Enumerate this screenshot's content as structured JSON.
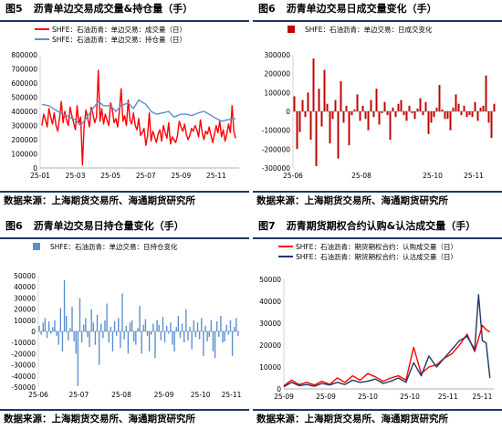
{
  "charts": [
    {
      "fig_num": "图5",
      "title": "沥青单边交易成交量&持仓量（手）",
      "source": "数据来源：上海期货交易所、海通期货研究所",
      "chart_data": {
        "type": "line",
        "legend": [
          {
            "name": "SHFE：石油沥青：单边交易：成交量（日）",
            "color": "#ff0000"
          },
          {
            "name": "SHFE：石油沥青：单边交易：持仓量（日）",
            "color": "#5b8fcf"
          }
        ],
        "legend_position": "top-left",
        "ylim": [
          0,
          800000
        ],
        "yticks": [
          0,
          100000,
          200000,
          300000,
          400000,
          500000,
          600000,
          700000,
          800000
        ],
        "xticks": [
          "25-01",
          "25-03",
          "25-05",
          "25-07",
          "25-09",
          "25-11"
        ],
        "xlim": [
          0,
          11.3
        ],
        "series": [
          {
            "name": "SHFE：石油沥青：单边交易：成交量（日）",
            "color": "#ff0000",
            "x": [
              0.1,
              0.2,
              0.3,
              0.4,
              0.5,
              0.6,
              0.7,
              0.8,
              0.9,
              1.0,
              1.1,
              1.2,
              1.3,
              1.4,
              1.5,
              1.6,
              1.7,
              1.8,
              1.9,
              2.0,
              2.1,
              2.2,
              2.3,
              2.4,
              2.5,
              2.6,
              2.7,
              2.8,
              2.9,
              3.0,
              3.1,
              3.2,
              3.3,
              3.4,
              3.5,
              3.6,
              3.7,
              3.8,
              3.9,
              4.0,
              4.1,
              4.2,
              4.3,
              4.4,
              4.5,
              4.6,
              4.7,
              4.8,
              4.9,
              5.0,
              5.1,
              5.2,
              5.3,
              5.4,
              5.5,
              5.6,
              5.7,
              5.8,
              5.9,
              6.0,
              6.1,
              6.2,
              6.3,
              6.4,
              6.5,
              6.6,
              6.7,
              6.8,
              6.9,
              7.0,
              7.1,
              7.2,
              7.3,
              7.4,
              7.5,
              7.6,
              7.7,
              7.8,
              7.9,
              8.0,
              8.1,
              8.2,
              8.3,
              8.4,
              8.5,
              8.6,
              8.7,
              8.8,
              8.9,
              9.0,
              9.1,
              9.2,
              9.3,
              9.4,
              9.5,
              9.6,
              9.7,
              9.8,
              9.9,
              10.0,
              10.1,
              10.2,
              10.3,
              10.4,
              10.5,
              10.6,
              10.7,
              10.8,
              10.9,
              11.0,
              11.1
            ],
            "y": [
              300000,
              380000,
              340000,
              290000,
              420000,
              360000,
              310000,
              390000,
              300000,
              260000,
              350000,
              470000,
              320000,
              400000,
              340000,
              300000,
              430000,
              370000,
              320000,
              270000,
              440000,
              310000,
              360000,
              20000,
              300000,
              410000,
              350000,
              290000,
              430000,
              380000,
              320000,
              360000,
              690000,
              330000,
              420000,
              310000,
              380000,
              340000,
              300000,
              460000,
              410000,
              320000,
              350000,
              290000,
              400000,
              560000,
              330000,
              370000,
              300000,
              480000,
              340000,
              310000,
              390000,
              300000,
              270000,
              350000,
              230000,
              250000,
              280000,
              160000,
              230000,
              390000,
              190000,
              260000,
              220000,
              180000,
              240000,
              270000,
              190000,
              300000,
              250000,
              210000,
              320000,
              170000,
              220000,
              200000,
              180000,
              230000,
              330000,
              290000,
              260000,
              310000,
              240000,
              200000,
              230000,
              280000,
              260000,
              300000,
              270000,
              220000,
              340000,
              250000,
              200000,
              260000,
              240000,
              290000,
              230000,
              180000,
              240000,
              300000,
              250000,
              330000,
              220000,
              270000,
              190000,
              240000,
              310000,
              250000,
              440000,
              260000,
              210000
            ]
          },
          {
            "name": "SHFE：石油沥青：单边交易：持仓量（日）",
            "color": "#5b8fcf",
            "x": [
              0.1,
              0.5,
              1.0,
              1.5,
              2.0,
              2.3,
              2.6,
              3.0,
              3.3,
              3.6,
              4.0,
              4.3,
              4.6,
              5.0,
              5.3,
              5.6,
              6.0,
              6.3,
              6.6,
              7.0,
              7.3,
              7.6,
              8.0,
              8.3,
              8.6,
              9.0,
              9.3,
              9.6,
              10.0,
              10.3,
              10.6,
              11.1
            ],
            "y": [
              450000,
              440000,
              400000,
              370000,
              340000,
              300000,
              350000,
              420000,
              470000,
              440000,
              440000,
              400000,
              440000,
              460000,
              420000,
              480000,
              450000,
              400000,
              380000,
              390000,
              400000,
              360000,
              380000,
              380000,
              370000,
              390000,
              400000,
              380000,
              350000,
              330000,
              340000,
              350000
            ]
          }
        ]
      }
    },
    {
      "fig_num": "图6",
      "title": "沥青单边交易日成交量变化（手）",
      "source": "数据来源：上海期货交易所、海通期货研究所",
      "chart_data": {
        "type": "bar",
        "legend": [
          {
            "name": "SHFE：石油沥青：单边交易：日成交变化",
            "color": "#c00000"
          }
        ],
        "legend_position": "top-left",
        "ylim": [
          -300000,
          300000
        ],
        "yticks": [
          -300000,
          -200000,
          -100000,
          0,
          100000,
          200000,
          300000
        ],
        "xticks": [
          "25-06",
          "25-08",
          "25-10",
          "25-11"
        ],
        "xlim": [
          0,
          74
        ],
        "xtick_positions": [
          0,
          25,
          51,
          66
        ],
        "series": [
          {
            "name": "SHFE：石油沥青：单边交易：日成交变化",
            "color": "#c00000",
            "values": [
              80000,
              -200000,
              -110000,
              60000,
              -30000,
              100000,
              -150000,
              280000,
              -290000,
              120000,
              -80000,
              220000,
              40000,
              -170000,
              -40000,
              60000,
              -250000,
              160000,
              -60000,
              30000,
              -180000,
              -20000,
              10000,
              90000,
              -50000,
              30000,
              -40000,
              -100000,
              60000,
              -30000,
              120000,
              -70000,
              -10000,
              50000,
              -20000,
              -150000,
              20000,
              -30000,
              40000,
              60000,
              -20000,
              -50000,
              30000,
              -10000,
              -40000,
              15000,
              70000,
              -20000,
              50000,
              -120000,
              -60000,
              -30000,
              20000,
              140000,
              10000,
              -40000,
              -40000,
              -100000,
              20000,
              90000,
              40000,
              -20000,
              30000,
              -30000,
              -20000,
              -30000,
              50000,
              -50000,
              20000,
              30000,
              190000,
              -60000,
              -140000,
              40000
            ]
          }
        ]
      }
    },
    {
      "fig_num": "图6",
      "title": "沥青单边交易日持仓量变化（手）",
      "source": "数据来源：上海期货交易所、海通期货研究所",
      "chart_data": {
        "type": "bar",
        "legend": [
          {
            "name": "SHFE：石油沥青：单边交易：日持仓变化",
            "color": "#5b8fcf"
          }
        ],
        "legend_position": "top-left",
        "ylim": [
          -50000,
          50000
        ],
        "yticks": [
          -50000,
          -40000,
          -30000,
          -20000,
          -10000,
          0,
          10000,
          20000,
          30000,
          40000,
          50000
        ],
        "xticks": [
          "25-06",
          "25-07",
          "25-08",
          "25-09",
          "25-10",
          "25-11"
        ],
        "xlim": [
          0,
          104
        ],
        "xtick_positions": [
          0,
          21,
          43,
          65,
          84,
          100
        ],
        "series": [
          {
            "name": "SHFE：石油沥青：单边交易：日持仓变化",
            "color": "#5b8fcf",
            "values": [
              5000,
              -3000,
              8000,
              12000,
              -6000,
              9000,
              -2000,
              4000,
              10000,
              -4000,
              -12000,
              21000,
              -18000,
              46000,
              14000,
              -8000,
              3000,
              22000,
              -9000,
              -20000,
              -49000,
              30000,
              -10000,
              6000,
              12000,
              -5000,
              -14000,
              20000,
              8000,
              -12000,
              15000,
              -30000,
              7000,
              -6000,
              10000,
              25000,
              -10000,
              4000,
              -18000,
              9000,
              -4000,
              12000,
              -15000,
              34000,
              -7000,
              5000,
              -20000,
              8000,
              10000,
              -9000,
              -12000,
              3000,
              23000,
              -20000,
              6000,
              11000,
              -4000,
              -18000,
              -3000,
              7000,
              -24000,
              10000,
              6000,
              -8000,
              13000,
              -10000,
              5000,
              -2000,
              8000,
              -12000,
              -18000,
              4000,
              14000,
              -6000,
              7000,
              -10000,
              20000,
              -8000,
              4000,
              -16000,
              10000,
              -5000,
              8000,
              -7000,
              12000,
              -22000,
              5000,
              -9000,
              -5000,
              10000,
              -18000,
              -24000,
              9000,
              -5000,
              14000,
              -10000,
              -9000,
              6000,
              -3000,
              10000,
              -22000,
              4000,
              12000,
              -4000
            ]
          }
        ]
      }
    },
    {
      "fig_num": "图7",
      "title": "沥青期货期权合约认购&认沽成交量（手）",
      "source": "数据来源：上海期货交易所、海通期货研究所",
      "chart_data": {
        "type": "line",
        "legend": [
          {
            "name": "SHFE：石油沥青：期货期权合约：认购成交量（日）",
            "color": "#ff0000"
          },
          {
            "name": "SHFE：石油沥青：期货期权合约：认沽成交量（日）",
            "color": "#1f3864"
          }
        ],
        "legend_position": "top-left",
        "ylim": [
          0,
          50000
        ],
        "yticks": [
          0,
          10000,
          20000,
          30000,
          40000,
          50000
        ],
        "xticks": [
          "25-09",
          "25-09",
          "25-10",
          "25-10",
          "25-11",
          "25-11"
        ],
        "xlim": [
          0,
          55
        ],
        "xtick_positions": [
          0,
          11,
          22,
          33,
          43,
          52
        ],
        "series": [
          {
            "name": "SHFE：石油沥青：期货期权合约：认购成交量（日）",
            "color": "#ff0000",
            "x": [
              0,
              2,
              4,
              6,
              8,
              10,
              12,
              14,
              16,
              18,
              20,
              22,
              24,
              26,
              28,
              30,
              32,
              34,
              36,
              38,
              40,
              42,
              44,
              46,
              48,
              50,
              52,
              53,
              54
            ],
            "y": [
              1500,
              4000,
              2000,
              3000,
              1800,
              3500,
              2000,
              5000,
              3000,
              6000,
              4000,
              7000,
              5500,
              3500,
              5000,
              6000,
              4000,
              19000,
              7000,
              10000,
              11000,
              14000,
              16000,
              20000,
              25000,
              17000,
              29000,
              27000,
              26000
            ]
          },
          {
            "name": "SHFE：石油沥青：期货期权合约：认沽成交量（日）",
            "color": "#1f3864",
            "x": [
              0,
              2,
              4,
              6,
              8,
              10,
              12,
              14,
              16,
              18,
              20,
              22,
              24,
              26,
              28,
              30,
              32,
              34,
              36,
              38,
              40,
              42,
              44,
              46,
              48,
              50,
              51,
              52,
              53,
              54
            ],
            "y": [
              1000,
              3000,
              1500,
              2000,
              1200,
              2500,
              1800,
              3000,
              2000,
              4000,
              3000,
              3500,
              4500,
              2500,
              3500,
              5000,
              3000,
              12000,
              6000,
              15000,
              10000,
              14000,
              18000,
              22000,
              24000,
              18000,
              43000,
              22000,
              21000,
              5000
            ]
          }
        ]
      }
    }
  ]
}
